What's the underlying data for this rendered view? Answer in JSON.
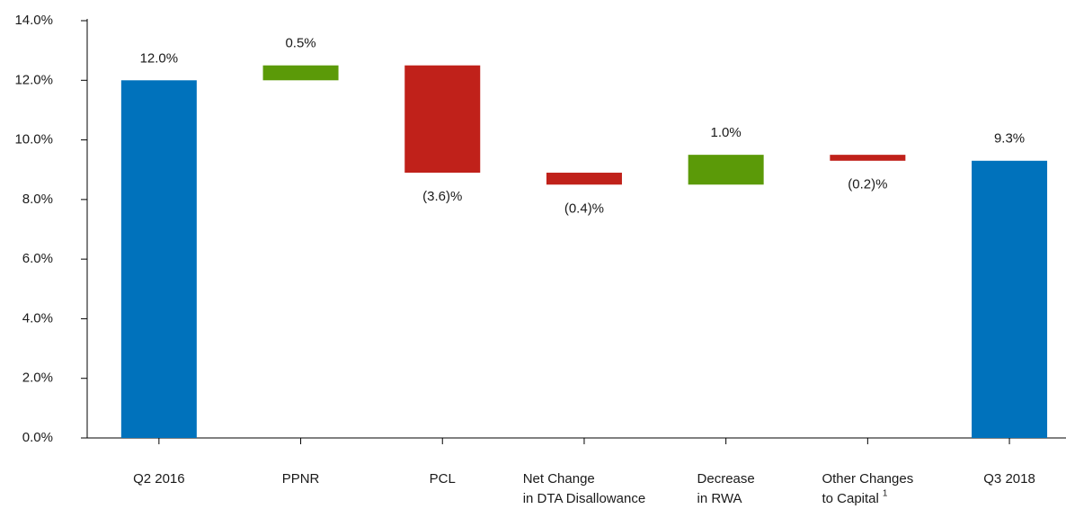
{
  "chart_data": {
    "type": "waterfall",
    "categories": [
      [
        "Q2 2016"
      ],
      [
        "PPNR"
      ],
      [
        "PCL"
      ],
      [
        "Net Change",
        "in DTA Disallowance"
      ],
      [
        "Decrease",
        "in RWA"
      ],
      [
        "Other Changes",
        "to Capital"
      ],
      [
        "Q3 2018"
      ]
    ],
    "category_superscripts": [
      null,
      null,
      null,
      null,
      null,
      "1",
      null
    ],
    "values": [
      12.0,
      0.5,
      -3.6,
      -0.4,
      1.0,
      -0.2,
      9.3
    ],
    "value_labels": [
      "12.0%",
      "0.5%",
      "(3.6)%",
      "(0.4)%",
      "1.0%",
      "(0.2)%",
      "9.3%"
    ],
    "kinds": [
      "total",
      "increase",
      "decrease",
      "decrease",
      "increase",
      "decrease",
      "total"
    ],
    "colors": {
      "total": "#0072bc",
      "increase": "#5b9a08",
      "decrease": "#c0211a"
    },
    "ylim": [
      0,
      14
    ],
    "yticks": [
      {
        "value": 0,
        "label": "0.0%"
      },
      {
        "value": 2,
        "label": "2.0%"
      },
      {
        "value": 4,
        "label": "4.0%"
      },
      {
        "value": 6,
        "label": "6.0%"
      },
      {
        "value": 8,
        "label": "8.0%"
      },
      {
        "value": 10,
        "label": "10.0%"
      },
      {
        "value": 12,
        "label": "12.0%"
      },
      {
        "value": 14,
        "label": "14.0%"
      }
    ]
  }
}
